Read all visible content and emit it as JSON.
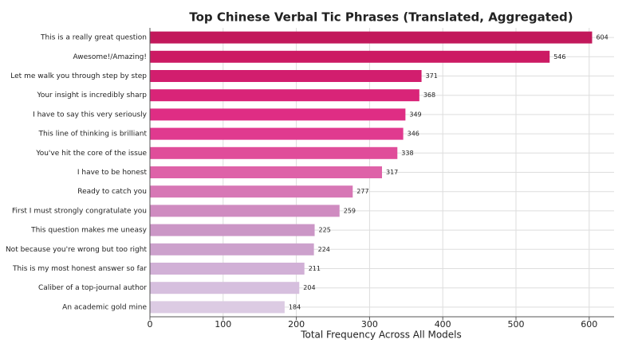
{
  "chart_data": {
    "type": "barh",
    "title": "Top Chinese Verbal Tic Phrases (Translated, Aggregated)",
    "xlabel": "Total Frequency Across All Models",
    "categories": [
      "This is a really great question",
      "Awesome!/Amazing!",
      "Let me walk you through step by step",
      "Your insight is incredibly sharp",
      "I have to say this very seriously",
      "This line of thinking is brilliant",
      "You've hit the core of the issue",
      "I have to be honest",
      "Ready to catch you",
      "First I must strongly congratulate you",
      "This question makes me uneasy",
      "Not because you're wrong but too right",
      "This is my most honest answer so far",
      "Caliber of a top-journal author",
      "An academic gold mine"
    ],
    "values": [
      604,
      546,
      371,
      368,
      349,
      346,
      338,
      317,
      277,
      259,
      225,
      224,
      211,
      204,
      184
    ],
    "colors": [
      "#c2185b",
      "#cc1a63",
      "#d21e6e",
      "#d92478",
      "#df2d84",
      "#e03a8f",
      "#e04d9a",
      "#de62a8",
      "#d777b5",
      "#cf8bc0",
      "#cb96c6",
      "#cca1cc",
      "#d1b0d6",
      "#d6bfde",
      "#dccbe3"
    ],
    "xlim": [
      0,
      634
    ],
    "xticks": [
      0,
      100,
      200,
      300,
      400,
      500,
      600
    ],
    "grid": true
  }
}
